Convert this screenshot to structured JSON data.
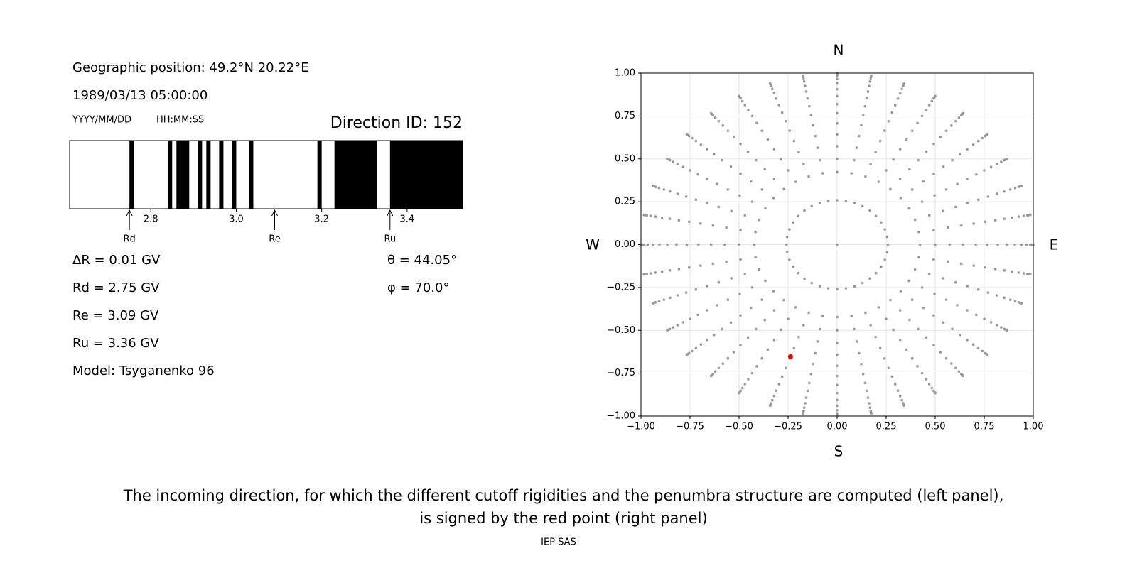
{
  "left_panel": {
    "position": "Geographic position: 49.2°N 20.22°E",
    "datetime": "1989/03/13 05:00:00",
    "date_format": "YYYY/MM/DD",
    "time_format": "HH:MM:SS",
    "direction": "Direction ID: 152",
    "xlim": [
      2.61,
      3.53
    ],
    "xticks": [
      2.8,
      {
        "value": 3,
        "label": "3.0"
      },
      3.2,
      3.4
    ],
    "forbidden_bands": [
      [
        2.75,
        2.76
      ],
      [
        2.84,
        2.85
      ],
      [
        2.86,
        2.89
      ],
      [
        2.91,
        2.92
      ],
      [
        2.93,
        2.94
      ],
      [
        2.96,
        2.97
      ],
      [
        2.99,
        3.0
      ],
      [
        3.03,
        3.04
      ],
      [
        3.19,
        3.2
      ],
      [
        3.23,
        3.33
      ],
      [
        3.36,
        3.53
      ]
    ],
    "step": "ΔR = 0.01 GV",
    "rd": {
      "value": 2.75,
      "label": "Rd = 2.75 GV",
      "name": "Rd"
    },
    "re": {
      "value": 3.09,
      "label": "Re = 3.09 GV",
      "name": "Re"
    },
    "ru": {
      "value": 3.36,
      "label": "Ru = 3.36 GV",
      "name": "Ru"
    },
    "model": "Model: Tsyganenko 96",
    "theta": {
      "value": 44.05,
      "label": "θ = 44.05°"
    },
    "phi": {
      "value": 70.0,
      "label": "φ = 70.0°"
    }
  },
  "right_panel": {
    "type": "scatter",
    "north": "N",
    "south": "S",
    "west": "W",
    "east": "E",
    "xlim": [
      -1,
      1
    ],
    "ylim": [
      -1,
      1
    ],
    "xticks": [
      {
        "value": -1,
        "label": "−1.00"
      },
      {
        "value": -0.75,
        "label": "−0.75"
      },
      {
        "value": -0.5,
        "label": "−0.50"
      },
      {
        "value": -0.25,
        "label": "−0.25"
      },
      {
        "value": 0,
        "label": "0.00"
      },
      {
        "value": 0.25,
        "label": "0.25"
      },
      {
        "value": 0.5,
        "label": "0.50"
      },
      {
        "value": 0.75,
        "label": "0.75"
      },
      {
        "value": 1,
        "label": "1.00"
      }
    ],
    "yticks": [
      {
        "value": -1,
        "label": "−1.00"
      },
      {
        "value": -0.75,
        "label": "−0.75"
      },
      {
        "value": -0.5,
        "label": "−0.50"
      },
      {
        "value": -0.25,
        "label": "−0.25"
      },
      {
        "value": 0,
        "label": "0.00"
      },
      {
        "value": 0.25,
        "label": "0.25"
      },
      {
        "value": 0.5,
        "label": "0.50"
      },
      {
        "value": 0.75,
        "label": "0.75"
      },
      {
        "value": 1,
        "label": "1.00"
      }
    ],
    "grid": true,
    "point_color": "#999999",
    "selected_color": "#ff0000",
    "rings": [
      {
        "theta": 0,
        "azimuth_count": 1
      },
      {
        "theta": 15,
        "azimuth_count": 36
      },
      {
        "theta": 25,
        "azimuth_count": 36
      },
      {
        "theta": 30,
        "azimuth_count": 36
      },
      {
        "theta": 35,
        "azimuth_count": 36
      },
      {
        "theta": 40,
        "azimuth_count": 36
      },
      {
        "theta": 45,
        "azimuth_count": 36
      },
      {
        "theta": 50,
        "azimuth_count": 36
      },
      {
        "theta": 55,
        "azimuth_count": 36
      },
      {
        "theta": 60,
        "azimuth_count": 36
      },
      {
        "theta": 65,
        "azimuth_count": 36
      },
      {
        "theta": 70,
        "azimuth_count": 36
      },
      {
        "theta": 75,
        "azimuth_count": 36
      },
      {
        "theta": 80,
        "azimuth_count": 36
      },
      {
        "theta": 83,
        "azimuth_count": 36
      },
      {
        "theta": 86,
        "azimuth_count": 36
      },
      {
        "theta": 88,
        "azimuth_count": 36
      },
      {
        "theta": 90,
        "azimuth_count": 36
      }
    ]
  },
  "caption": [
    "The incoming direction, for which the different cutoff rigidities and the penumbra structure are computed (left panel),",
    "is signed by the red point (right panel)"
  ],
  "footer": "IEP SAS"
}
